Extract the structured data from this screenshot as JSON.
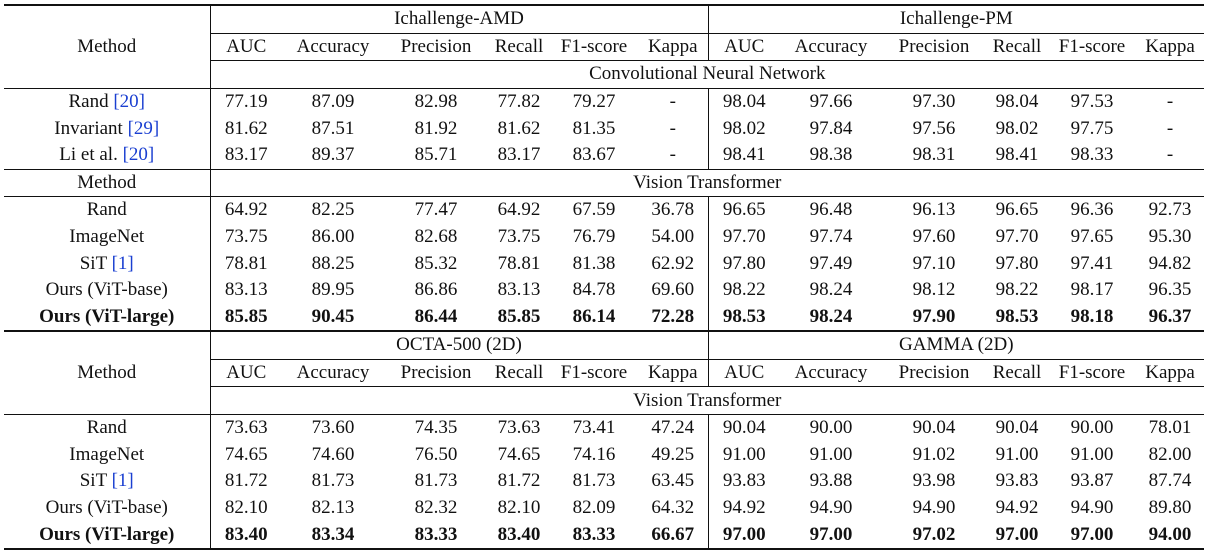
{
  "blocks": [
    {
      "method_header": "Method",
      "datasets": [
        {
          "name": "Ichallenge-AMD",
          "metrics": [
            "AUC",
            "Accuracy",
            "Precision",
            "Recall",
            "F1-score",
            "Kappa"
          ]
        },
        {
          "name": "Ichallenge-PM",
          "metrics": [
            "AUC",
            "Accuracy",
            "Precision",
            "Recall",
            "F1-score",
            "Kappa"
          ]
        }
      ],
      "sections": [
        {
          "title": "Convolutional Neural Network",
          "rows": [
            {
              "method": "Rand",
              "cite": "[20]",
              "cells": [
                "77.19",
                "87.09",
                "82.98",
                "77.82",
                "79.27",
                "-",
                "98.04",
                "97.66",
                "97.30",
                "98.04",
                "97.53",
                "-"
              ]
            },
            {
              "method": "Invariant",
              "cite": "[29]",
              "cells": [
                "81.62",
                "87.51",
                "81.92",
                "81.62",
                "81.35",
                "-",
                "98.02",
                "97.84",
                "97.56",
                "98.02",
                "97.75",
                "-"
              ]
            },
            {
              "method": "Li et al.",
              "cite": "[20]",
              "cells": [
                "83.17",
                "89.37",
                "85.71",
                "83.17",
                "83.67",
                "-",
                "98.41",
                "98.38",
                "98.31",
                "98.41",
                "98.33",
                "-"
              ]
            }
          ]
        },
        {
          "method_header": "Method",
          "title": "Vision Transformer",
          "rows": [
            {
              "method": "Rand",
              "cells": [
                "64.92",
                "82.25",
                "77.47",
                "64.92",
                "67.59",
                "36.78",
                "96.65",
                "96.48",
                "96.13",
                "96.65",
                "96.36",
                "92.73"
              ]
            },
            {
              "method": "ImageNet",
              "cells": [
                "73.75",
                "86.00",
                "82.68",
                "73.75",
                "76.79",
                "54.00",
                "97.70",
                "97.74",
                "97.60",
                "97.70",
                "97.65",
                "95.30"
              ]
            },
            {
              "method": "SiT",
              "cite": "[1]",
              "cells": [
                "78.81",
                "88.25",
                "85.32",
                "78.81",
                "81.38",
                "62.92",
                "97.80",
                "97.49",
                "97.10",
                "97.80",
                "97.41",
                "94.82"
              ]
            },
            {
              "method": "Ours (ViT-base)",
              "cells": [
                "83.13",
                "89.95",
                "86.86",
                "83.13",
                "84.78",
                "69.60",
                "98.22",
                "98.24",
                "98.12",
                "98.22",
                "98.17",
                "96.35"
              ]
            },
            {
              "method": "Ours (ViT-large)",
              "bold": true,
              "cells": [
                "85.85",
                "90.45",
                "86.44",
                "85.85",
                "86.14",
                "72.28",
                "98.53",
                "98.24",
                "97.90",
                "98.53",
                "98.18",
                "96.37"
              ]
            }
          ]
        }
      ]
    },
    {
      "method_header": "Method",
      "datasets": [
        {
          "name": "OCTA-500 (2D)",
          "metrics": [
            "AUC",
            "Accuracy",
            "Precision",
            "Recall",
            "F1-score",
            "Kappa"
          ]
        },
        {
          "name": "GAMMA (2D)",
          "metrics": [
            "AUC",
            "Accuracy",
            "Precision",
            "Recall",
            "F1-score",
            "Kappa"
          ]
        }
      ],
      "sections": [
        {
          "title": "Vision Transformer",
          "rows": [
            {
              "method": "Rand",
              "cells": [
                "73.63",
                "73.60",
                "74.35",
                "73.63",
                "73.41",
                "47.24",
                "90.04",
                "90.00",
                "90.04",
                "90.04",
                "90.00",
                "78.01"
              ]
            },
            {
              "method": "ImageNet",
              "cells": [
                "74.65",
                "74.60",
                "76.50",
                "74.65",
                "74.16",
                "49.25",
                "91.00",
                "91.00",
                "91.02",
                "91.00",
                "91.00",
                "82.00"
              ]
            },
            {
              "method": "SiT",
              "cite": "[1]",
              "cells": [
                "81.72",
                "81.73",
                "81.73",
                "81.72",
                "81.73",
                "63.45",
                "93.83",
                "93.88",
                "93.98",
                "93.83",
                "93.87",
                "87.74"
              ]
            },
            {
              "method": "Ours (ViT-base)",
              "cells": [
                "82.10",
                "82.13",
                "82.32",
                "82.10",
                "82.09",
                "64.32",
                "94.92",
                "94.90",
                "94.90",
                "94.92",
                "94.90",
                "89.80"
              ]
            },
            {
              "method": "Ours (ViT-large)",
              "bold": true,
              "cells": [
                "83.40",
                "83.34",
                "83.33",
                "83.40",
                "83.33",
                "66.67",
                "97.00",
                "97.00",
                "97.02",
                "97.00",
                "97.00",
                "94.00"
              ]
            }
          ]
        }
      ]
    }
  ]
}
